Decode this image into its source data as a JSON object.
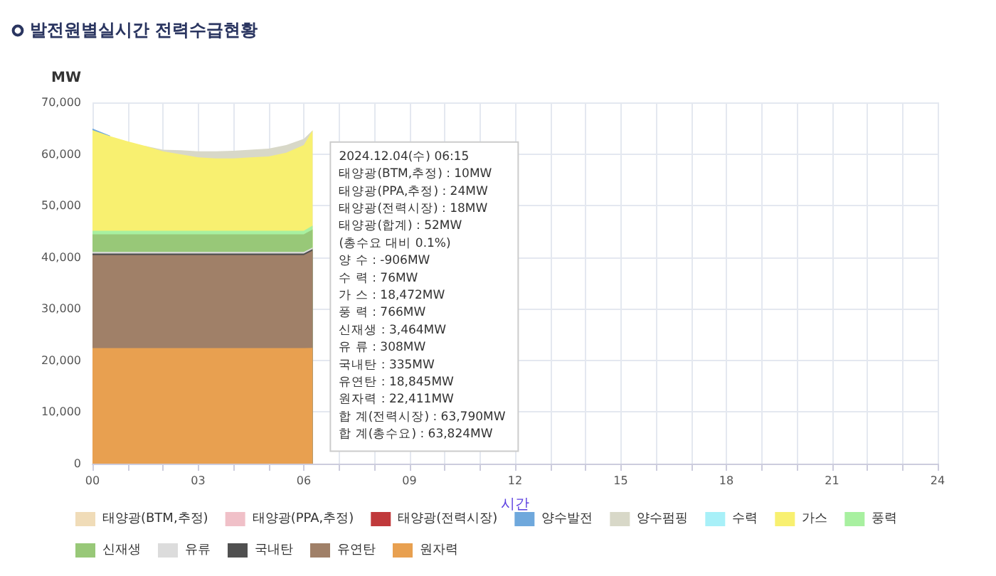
{
  "chart_data": {
    "type": "area",
    "title": "발전원별실시간 전력수급현황",
    "xlabel": "시간",
    "ylabel": "MW",
    "stacked": true,
    "x": [
      0,
      0.5,
      1,
      1.5,
      2,
      2.5,
      3,
      3.5,
      4,
      4.5,
      5,
      5.5,
      6,
      6.25
    ],
    "series": [
      {
        "name": "원자력",
        "color": "#e8a050",
        "values": [
          22400,
          22400,
          22400,
          22400,
          22400,
          22400,
          22400,
          22400,
          22400,
          22400,
          22400,
          22400,
          22400,
          22411
        ]
      },
      {
        "name": "유연탄",
        "color": "#a08068",
        "values": [
          18000,
          18000,
          18000,
          18000,
          18000,
          18000,
          18000,
          18000,
          18000,
          18000,
          18000,
          18000,
          18000,
          18845
        ]
      },
      {
        "name": "국내탄",
        "color": "#505050",
        "values": [
          335,
          335,
          335,
          335,
          335,
          335,
          335,
          335,
          335,
          335,
          335,
          335,
          335,
          335
        ]
      },
      {
        "name": "유류",
        "color": "#dcdcdc",
        "values": [
          308,
          308,
          308,
          308,
          308,
          308,
          308,
          308,
          308,
          308,
          308,
          308,
          308,
          308
        ]
      },
      {
        "name": "신재생",
        "color": "#98c878",
        "values": [
          3400,
          3400,
          3400,
          3400,
          3400,
          3400,
          3400,
          3400,
          3400,
          3400,
          3400,
          3400,
          3400,
          3464
        ]
      },
      {
        "name": "풍력",
        "color": "#a8f0a0",
        "values": [
          700,
          700,
          700,
          700,
          700,
          700,
          700,
          700,
          700,
          700,
          700,
          700,
          700,
          766
        ]
      },
      {
        "name": "가스",
        "color": "#f8f070",
        "values": [
          19500,
          18300,
          17300,
          16400,
          15400,
          14800,
          14200,
          14000,
          14000,
          14200,
          14400,
          15100,
          16600,
          18472
        ]
      },
      {
        "name": "수력",
        "color": "#a8f0f8",
        "values": [
          null,
          null,
          null,
          null,
          null,
          null,
          null,
          null,
          null,
          null,
          null,
          null,
          null,
          null
        ]
      },
      {
        "name": "양수펌핑",
        "color": "#d8d8c8",
        "values": [
          null,
          null,
          null,
          0,
          300,
          800,
          1200,
          1400,
          1500,
          1500,
          1500,
          1500,
          1200,
          0
        ]
      },
      {
        "name": "양수발전",
        "color": "#6fa8dc",
        "values": [
          300,
          100,
          null,
          null,
          null,
          null,
          null,
          null,
          null,
          null,
          null,
          null,
          null,
          null
        ]
      },
      {
        "name": "태양광(전력시장)",
        "color": "#c0393b",
        "values": [
          null,
          null,
          null,
          null,
          null,
          null,
          null,
          null,
          null,
          null,
          null,
          null,
          null,
          null
        ]
      },
      {
        "name": "태양광(PPA,추정)",
        "color": "#f0c0c8",
        "values": [
          null,
          null,
          null,
          null,
          null,
          null,
          null,
          null,
          null,
          null,
          null,
          null,
          null,
          null
        ]
      },
      {
        "name": "태양광(BTM,추정)",
        "color": "#f0dcb8",
        "values": [
          null,
          null,
          null,
          null,
          null,
          null,
          null,
          null,
          null,
          null,
          null,
          null,
          null,
          null
        ]
      }
    ],
    "xlim": [
      0,
      24
    ],
    "xticks": [
      {
        "value": 0,
        "label": "00"
      },
      {
        "value": 1,
        "label": null
      },
      {
        "value": 2,
        "label": null
      },
      {
        "value": 3,
        "label": "03"
      },
      {
        "value": 4,
        "label": null
      },
      {
        "value": 5,
        "label": null
      },
      {
        "value": 6,
        "label": "06"
      },
      {
        "value": 7,
        "label": null
      },
      {
        "value": 8,
        "label": null
      },
      {
        "value": 9,
        "label": "09"
      },
      {
        "value": 10,
        "label": null
      },
      {
        "value": 11,
        "label": null
      },
      {
        "value": 12,
        "label": "12"
      },
      {
        "value": 13,
        "label": null
      },
      {
        "value": 14,
        "label": null
      },
      {
        "value": 15,
        "label": "15"
      },
      {
        "value": 16,
        "label": null
      },
      {
        "value": 17,
        "label": null
      },
      {
        "value": 18,
        "label": "18"
      },
      {
        "value": 19,
        "label": null
      },
      {
        "value": 20,
        "label": null
      },
      {
        "value": 21,
        "label": "21"
      },
      {
        "value": 22,
        "label": null
      },
      {
        "value": 23,
        "label": null
      },
      {
        "value": 24,
        "label": "24"
      }
    ],
    "ylim": [
      0,
      70000
    ],
    "yticks": [
      0,
      {
        "value": 10000,
        "label": "10,000"
      },
      {
        "value": 20000,
        "label": "20,000"
      },
      {
        "value": 30000,
        "label": "30,000"
      },
      {
        "value": 40000,
        "label": "40,000"
      },
      {
        "value": 50000,
        "label": "50,000"
      },
      {
        "value": 60000,
        "label": "60,000"
      },
      {
        "value": 70000,
        "label": "70,000"
      }
    ],
    "grid": true,
    "legend": "bottom",
    "annotations": [
      {
        "text": "2024.12.04(수) 06:15",
        "x": 6.25,
        "y": 63824
      },
      "태양광(BTM,추정) : 10MW",
      "태양광(PPA,추정) : 24MW",
      "태양광(전력시장) : 18MW",
      "태양광(합계) : 52MW",
      "(총수요 대비 0.1%)",
      "양 수 : -906MW",
      "수 력 : 76MW",
      "가 스 : 18,472MW",
      "풍 력 : 766MW",
      "신재생 : 3,464MW",
      "유 류 : 308MW",
      "국내탄 : 335MW",
      "유연탄 : 18,845MW",
      "원자력 : 22,411MW",
      "합 계(전력시장) : 63,790MW",
      "합 계(총수요) : 63,824MW"
    ]
  }
}
